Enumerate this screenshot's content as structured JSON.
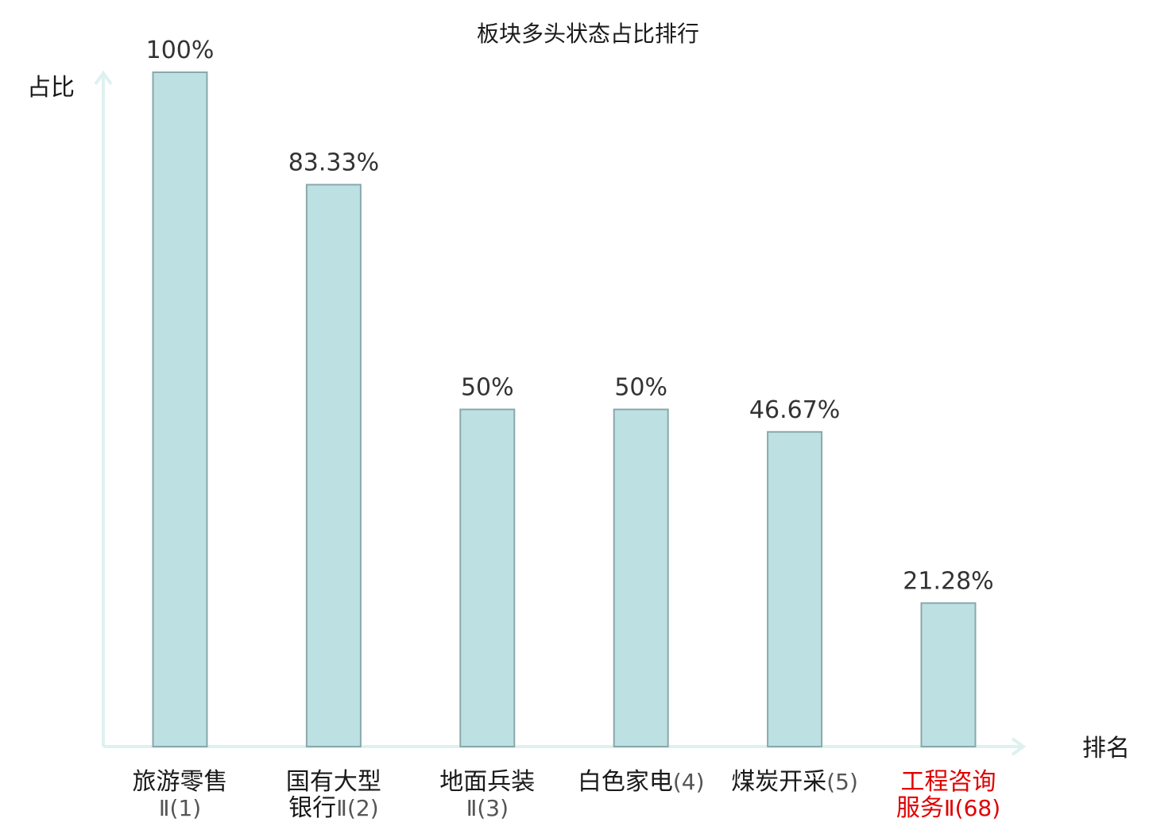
{
  "chart_data": {
    "type": "bar",
    "title": "板块多头状态占比排行",
    "xlabel": "排名",
    "ylabel": "占比",
    "ylim": [
      0,
      100
    ],
    "unit": "%",
    "grid": false,
    "categories": [
      {
        "lines": [
          {
            "name": "旅游零售",
            "rank": ""
          },
          {
            "name": "",
            "rank": "Ⅱ(1)"
          }
        ]
      },
      {
        "lines": [
          {
            "name": "国有大型",
            "rank": ""
          },
          {
            "name": "银行",
            "rank": "Ⅱ(2)"
          }
        ]
      },
      {
        "lines": [
          {
            "name": "地面兵装",
            "rank": ""
          },
          {
            "name": "",
            "rank": "Ⅱ(3)"
          }
        ]
      },
      {
        "lines": [
          {
            "name": "白色家电",
            "rank": "(4)"
          }
        ]
      },
      {
        "lines": [
          {
            "name": "煤炭开采",
            "rank": "(5)"
          }
        ]
      },
      {
        "lines": [
          {
            "name": "工程咨询",
            "rank": ""
          },
          {
            "name": "服务",
            "rank": "Ⅱ(68)"
          }
        ],
        "highlight": true
      }
    ],
    "values": [
      100,
      83.33,
      50,
      50,
      46.67,
      21.28
    ],
    "value_labels": [
      "100%",
      "83.33%",
      "50%",
      "50%",
      "46.67%",
      "21.28%"
    ],
    "colors": {
      "bar_fill": "#bde0e3",
      "bar_stroke": "#8aa8ab",
      "axis": "#dff1ef",
      "highlight": "#e00000"
    }
  }
}
